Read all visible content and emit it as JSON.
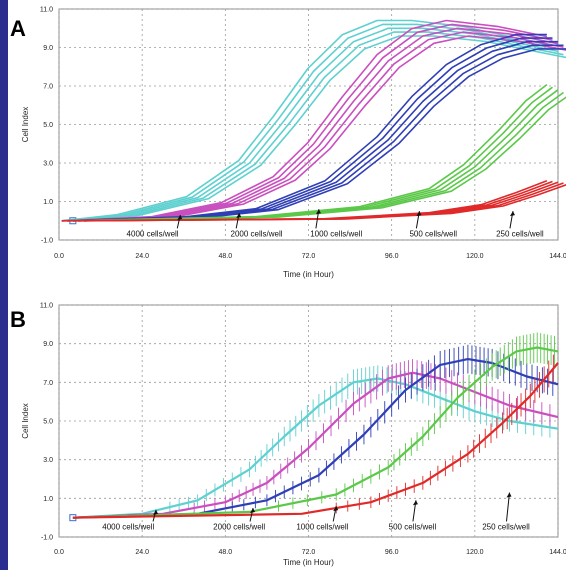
{
  "chart_data": [
    {
      "panel": "A",
      "type": "line",
      "xlabel": "Time (in Hour)",
      "ylabel": "Cell Index",
      "xlim": [
        0,
        144
      ],
      "ylim": [
        -1,
        11
      ],
      "xticks": [
        "0.0",
        "24.0",
        "48.0",
        "72.0",
        "96.0",
        "120.0",
        "144.0"
      ],
      "yticks": [
        "-1.0",
        "1.0",
        "3.0",
        "5.0",
        "7.0",
        "9.0",
        "11.0"
      ],
      "grid": true,
      "series": [
        {
          "color": "#5fd0d0",
          "x": [
            4,
            20,
            40,
            55,
            65,
            75,
            85,
            95,
            105,
            120,
            144
          ],
          "y": [
            0,
            0.3,
            1.2,
            3.0,
            5.2,
            7.6,
            9.3,
            10.0,
            10.0,
            9.7,
            8.8
          ]
        },
        {
          "color": "#c94fbf",
          "x": [
            4,
            30,
            50,
            65,
            75,
            85,
            95,
            105,
            115,
            130,
            144
          ],
          "y": [
            0,
            0.2,
            0.9,
            2.2,
            3.9,
            6.2,
            8.3,
            9.6,
            10.0,
            9.7,
            9.2
          ]
        },
        {
          "color": "#2f3fb5",
          "x": [
            4,
            40,
            60,
            80,
            95,
            105,
            115,
            125,
            135,
            144
          ],
          "y": [
            0,
            0.2,
            0.6,
            2.0,
            4.2,
            6.2,
            7.8,
            8.8,
            9.3,
            9.3
          ]
        },
        {
          "color": "#5cc84a",
          "x": [
            4,
            60,
            90,
            110,
            120,
            130,
            138,
            144
          ],
          "y": [
            0,
            0.2,
            0.7,
            1.6,
            2.8,
            4.5,
            6.0,
            6.8
          ]
        },
        {
          "color": "#e02a2a",
          "x": [
            4,
            80,
            110,
            125,
            135,
            144
          ],
          "y": [
            0,
            0.1,
            0.4,
            0.8,
            1.4,
            2.0
          ]
        }
      ],
      "annotations": [
        {
          "text": "4000 cells/well",
          "x": 27,
          "y": -0.5,
          "arrow_x": 35,
          "arrow_y": 0.3
        },
        {
          "text": "2000 cells/well",
          "x": 57,
          "y": -0.5,
          "arrow_x": 52,
          "arrow_y": 0.4
        },
        {
          "text": "1000 cells/well",
          "x": 80,
          "y": -0.5,
          "arrow_x": 75,
          "arrow_y": 0.6
        },
        {
          "text": "500 cells/well",
          "x": 108,
          "y": -0.5,
          "arrow_x": 104,
          "arrow_y": 0.5
        },
        {
          "text": "250 cells/well",
          "x": 133,
          "y": -0.5,
          "arrow_x": 131,
          "arrow_y": 0.5
        }
      ]
    },
    {
      "panel": "B",
      "type": "line",
      "xlabel": "Time (in Hour)",
      "ylabel": "Cell Index",
      "xlim": [
        0,
        144
      ],
      "ylim": [
        -1,
        11
      ],
      "xticks": [
        "0.0",
        "24.0",
        "48.0",
        "72.0",
        "96.0",
        "120.0",
        "144.0"
      ],
      "yticks": [
        "-1.0",
        "1.0",
        "3.0",
        "5.0",
        "7.0",
        "9.0",
        "11.0"
      ],
      "grid": true,
      "error_bars": true,
      "series": [
        {
          "color": "#5fd0d0",
          "x": [
            4,
            24,
            40,
            55,
            65,
            75,
            85,
            92,
            100,
            110,
            120,
            130,
            144
          ],
          "y": [
            0,
            0.2,
            0.9,
            2.5,
            4.2,
            5.8,
            7.0,
            7.2,
            6.9,
            6.2,
            5.5,
            5.0,
            4.6
          ]
        },
        {
          "color": "#c94fbf",
          "x": [
            4,
            30,
            48,
            60,
            72,
            85,
            95,
            102,
            110,
            120,
            130,
            144
          ],
          "y": [
            0,
            0.2,
            0.8,
            1.8,
            3.6,
            5.9,
            7.2,
            7.5,
            7.2,
            6.5,
            5.8,
            5.2
          ]
        },
        {
          "color": "#2f3fb5",
          "x": [
            4,
            40,
            60,
            75,
            88,
            100,
            110,
            118,
            125,
            135,
            144
          ],
          "y": [
            0,
            0.2,
            0.9,
            2.2,
            4.3,
            6.6,
            7.9,
            8.2,
            8.0,
            7.3,
            6.9
          ]
        },
        {
          "color": "#5cc84a",
          "x": [
            4,
            55,
            80,
            95,
            105,
            115,
            125,
            132,
            138,
            144
          ],
          "y": [
            0,
            0.3,
            1.2,
            2.6,
            4.2,
            6.2,
            7.8,
            8.6,
            8.8,
            8.6
          ]
        },
        {
          "color": "#e02a2a",
          "x": [
            4,
            70,
            90,
            105,
            118,
            128,
            136,
            144
          ],
          "y": [
            0,
            0.2,
            0.8,
            1.8,
            3.3,
            4.9,
            6.3,
            8.0
          ]
        }
      ],
      "annotations": [
        {
          "text": "4000 cells/well",
          "x": 20,
          "y": -0.3,
          "arrow_x": 28,
          "arrow_y": 0.4
        },
        {
          "text": "2000 cells/well",
          "x": 52,
          "y": -0.3,
          "arrow_x": 56,
          "arrow_y": 0.5
        },
        {
          "text": "1000 cells/well",
          "x": 76,
          "y": -0.3,
          "arrow_x": 80,
          "arrow_y": 0.6
        },
        {
          "text": "500 cells/well",
          "x": 102,
          "y": -0.3,
          "arrow_x": 103,
          "arrow_y": 0.9
        },
        {
          "text": "250 cells/well",
          "x": 129,
          "y": -0.3,
          "arrow_x": 130,
          "arrow_y": 1.3
        }
      ]
    }
  ]
}
